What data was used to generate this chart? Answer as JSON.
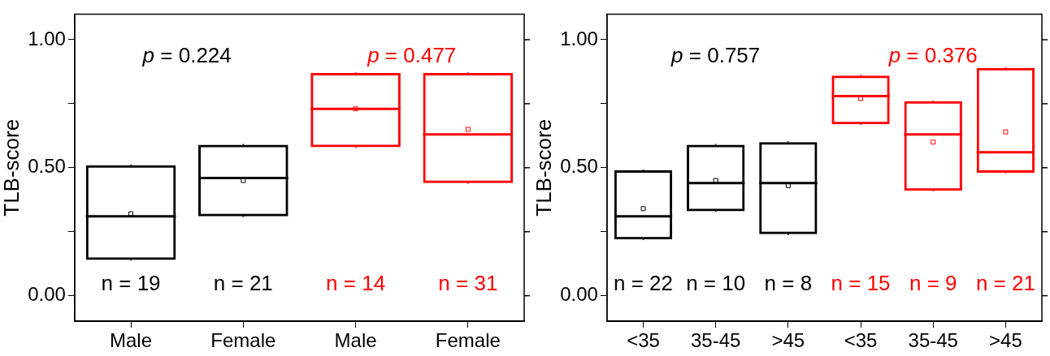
{
  "chart_data": [
    {
      "type": "box",
      "ylabel": "TLB-score",
      "categories": [
        "Male",
        "Female",
        "Male",
        "Female"
      ],
      "ylim": [
        -0.1,
        1.1
      ],
      "yticks": [
        {
          "value": 0,
          "label": "0.00"
        },
        {
          "value": 0.25,
          "label": null
        },
        {
          "value": 0.5,
          "label": "0.50"
        },
        {
          "value": 0.75,
          "label": null
        },
        {
          "value": 1,
          "label": "1.00"
        }
      ],
      "grid": false,
      "legend": false,
      "marker": "cross",
      "series": [
        {
          "color": "#000000",
          "boxes": [
            {
              "low": 0.14,
              "q1": 0.14,
              "median": 0.31,
              "q3": 0.51,
              "high": 0.51,
              "mean": 0.32
            },
            {
              "low": 0.31,
              "q1": 0.31,
              "median": 0.46,
              "q3": 0.59,
              "high": 0.59,
              "mean": 0.45
            },
            null,
            null
          ]
        },
        {
          "color": "#ff0000",
          "boxes": [
            null,
            null,
            {
              "low": 0.58,
              "q1": 0.58,
              "median": 0.73,
              "q3": 0.87,
              "high": 0.87,
              "mean": 0.73
            },
            {
              "low": 0.44,
              "q1": 0.44,
              "median": 0.63,
              "q3": 0.87,
              "high": 0.87,
              "mean": 0.65
            }
          ]
        }
      ],
      "annotations": [
        "p = 0.224",
        "p = 0.477",
        "n = 19",
        "n = 21",
        "n = 14",
        "n = 31"
      ]
    },
    {
      "type": "box",
      "ylabel": "TLB-score",
      "categories": [
        "<35",
        "35-45",
        ">45",
        "<35",
        "35-45",
        ">45"
      ],
      "ylim": [
        -0.1,
        1.1
      ],
      "yticks": [
        {
          "value": 0,
          "label": "0.00"
        },
        {
          "value": 0.25,
          "label": null
        },
        {
          "value": 0.5,
          "label": "0.50"
        },
        {
          "value": 0.75,
          "label": null
        },
        {
          "value": 1,
          "label": "1.00"
        }
      ],
      "grid": false,
      "legend": false,
      "marker": "cross",
      "series": [
        {
          "color": "#000000",
          "boxes": [
            {
              "low": 0.22,
              "q1": 0.22,
              "median": 0.31,
              "q3": 0.49,
              "high": 0.49,
              "mean": 0.34
            },
            {
              "low": 0.33,
              "q1": 0.33,
              "median": 0.44,
              "q3": 0.59,
              "high": 0.59,
              "mean": 0.45
            },
            {
              "low": 0.24,
              "q1": 0.24,
              "median": 0.44,
              "q3": 0.6,
              "high": 0.6,
              "mean": 0.43
            },
            null,
            null,
            null
          ]
        },
        {
          "color": "#ff0000",
          "boxes": [
            null,
            null,
            null,
            {
              "low": 0.67,
              "q1": 0.67,
              "median": 0.78,
              "q3": 0.86,
              "high": 0.86,
              "mean": 0.77
            },
            {
              "low": 0.41,
              "q1": 0.41,
              "median": 0.63,
              "q3": 0.76,
              "high": 0.76,
              "mean": 0.6
            },
            {
              "low": 0.48,
              "q1": 0.48,
              "median": 0.56,
              "q3": 0.89,
              "high": 0.89,
              "mean": 0.64
            }
          ]
        }
      ],
      "annotations": [
        "p = 0.757",
        "p = 0.376",
        "n = 22",
        "n = 10",
        "n = 8",
        "n = 15",
        "n = 9",
        "n = 21"
      ]
    }
  ]
}
